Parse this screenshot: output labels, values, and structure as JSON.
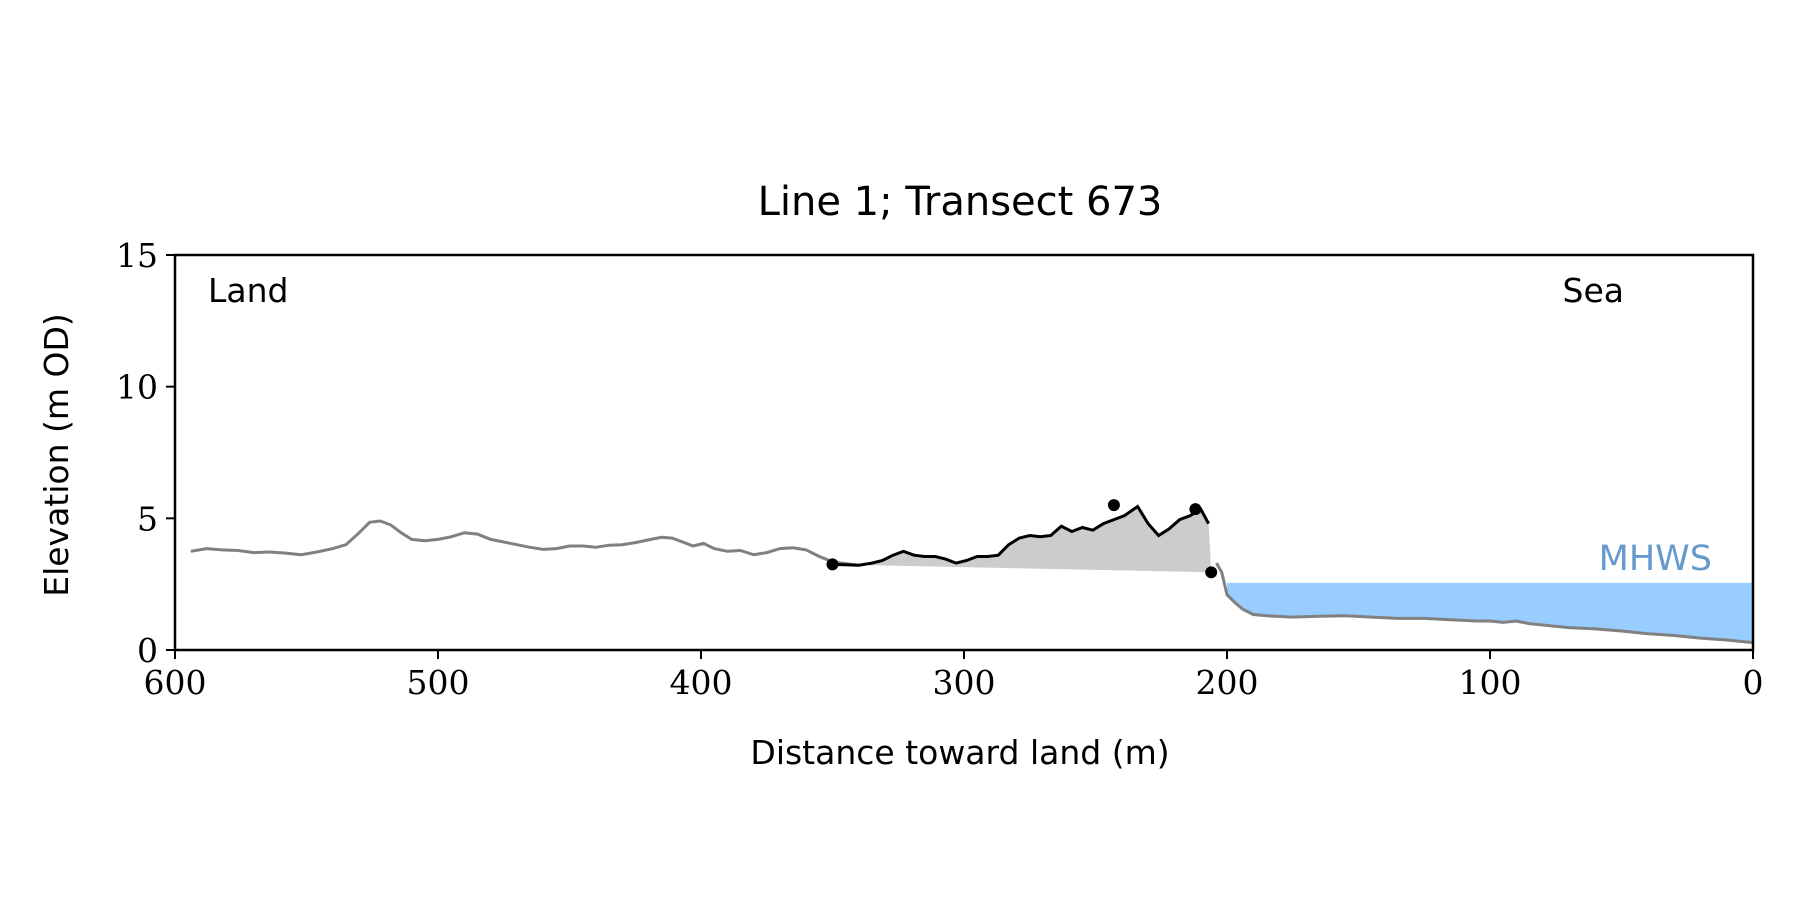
{
  "chart_data": {
    "type": "line",
    "title": "Line 1; Transect 673",
    "xlabel": "Distance toward land (m)",
    "ylabel": "Elevation (m OD)",
    "xlim": [
      600,
      0
    ],
    "ylim": [
      0,
      15
    ],
    "x_ticks": [
      600,
      500,
      400,
      300,
      200,
      100,
      0
    ],
    "y_ticks": [
      0,
      5,
      10,
      15
    ],
    "grid": false,
    "annotations": {
      "land_label": "Land",
      "sea_label": "Sea",
      "mhws_label": "MHWS"
    },
    "mhws": {
      "level": 2.55,
      "x_start": 200,
      "x_end": 0
    },
    "colors": {
      "profile": "#808080",
      "feature": "#000000",
      "feature_fill": "#cccccc",
      "water": "#99ccff",
      "mhws_text": "#6699cc"
    },
    "series": [
      {
        "values_xy": [
          [
            594,
            3.75
          ],
          [
            588,
            3.85
          ],
          [
            582,
            3.8
          ],
          [
            576,
            3.78
          ],
          [
            570,
            3.7
          ],
          [
            564,
            3.72
          ],
          [
            558,
            3.68
          ],
          [
            552,
            3.62
          ],
          [
            546,
            3.72
          ],
          [
            540,
            3.85
          ],
          [
            535,
            4.0
          ],
          [
            530,
            4.45
          ],
          [
            526,
            4.85
          ],
          [
            522,
            4.9
          ],
          [
            518,
            4.75
          ],
          [
            514,
            4.45
          ],
          [
            510,
            4.2
          ],
          [
            505,
            4.15
          ],
          [
            500,
            4.2
          ],
          [
            495,
            4.3
          ],
          [
            490,
            4.45
          ],
          [
            485,
            4.4
          ],
          [
            480,
            4.2
          ],
          [
            475,
            4.1
          ],
          [
            470,
            4.0
          ],
          [
            465,
            3.9
          ],
          [
            460,
            3.82
          ],
          [
            455,
            3.85
          ],
          [
            450,
            3.95
          ],
          [
            445,
            3.95
          ],
          [
            440,
            3.9
          ],
          [
            435,
            3.98
          ],
          [
            430,
            4.0
          ],
          [
            425,
            4.08
          ],
          [
            420,
            4.18
          ],
          [
            415,
            4.28
          ],
          [
            411,
            4.25
          ],
          [
            407,
            4.1
          ],
          [
            403,
            3.95
          ],
          [
            399,
            4.05
          ],
          [
            395,
            3.85
          ],
          [
            390,
            3.75
          ],
          [
            385,
            3.78
          ],
          [
            380,
            3.62
          ],
          [
            375,
            3.7
          ],
          [
            370,
            3.85
          ],
          [
            365,
            3.88
          ],
          [
            360,
            3.8
          ],
          [
            355,
            3.55
          ],
          [
            350,
            3.35
          ],
          [
            345,
            3.28
          ],
          [
            340,
            3.22
          ]
        ]
      },
      {
        "values_xy": [
          [
            340,
            3.22
          ],
          [
            335,
            3.3
          ],
          [
            331,
            3.4
          ],
          [
            327,
            3.6
          ],
          [
            323,
            3.75
          ],
          [
            319,
            3.6
          ],
          [
            315,
            3.55
          ],
          [
            311,
            3.55
          ],
          [
            307,
            3.45
          ],
          [
            303,
            3.3
          ],
          [
            299,
            3.4
          ],
          [
            295,
            3.55
          ],
          [
            291,
            3.55
          ],
          [
            287,
            3.6
          ],
          [
            283,
            4.0
          ],
          [
            279,
            4.25
          ],
          [
            275,
            4.35
          ],
          [
            271,
            4.3
          ],
          [
            267,
            4.35
          ],
          [
            263,
            4.7
          ],
          [
            259,
            4.5
          ],
          [
            255,
            4.65
          ],
          [
            251,
            4.55
          ],
          [
            247,
            4.8
          ],
          [
            243,
            4.95
          ],
          [
            239,
            5.1
          ],
          [
            234,
            5.45
          ],
          [
            230,
            4.8
          ],
          [
            226,
            4.35
          ],
          [
            222,
            4.6
          ],
          [
            218,
            4.95
          ],
          [
            214,
            5.1
          ],
          [
            210,
            5.35
          ],
          [
            207,
            4.8
          ],
          [
            204,
            3.3
          ],
          [
            202,
            2.95
          ],
          [
            200,
            2.1
          ],
          [
            197,
            1.8
          ],
          [
            194,
            1.55
          ],
          [
            190,
            1.35
          ],
          [
            185,
            1.3
          ],
          [
            175,
            1.25
          ],
          [
            165,
            1.28
          ],
          [
            155,
            1.3
          ],
          [
            145,
            1.25
          ],
          [
            135,
            1.2
          ],
          [
            125,
            1.2
          ],
          [
            115,
            1.15
          ],
          [
            105,
            1.1
          ],
          [
            100,
            1.1
          ],
          [
            95,
            1.05
          ],
          [
            90,
            1.1
          ],
          [
            85,
            1.0
          ],
          [
            80,
            0.95
          ],
          [
            70,
            0.85
          ],
          [
            60,
            0.8
          ],
          [
            50,
            0.72
          ],
          [
            40,
            0.62
          ],
          [
            30,
            0.55
          ],
          [
            20,
            0.45
          ],
          [
            10,
            0.38
          ],
          [
            0,
            0.28
          ]
        ]
      }
    ],
    "feature": {
      "points_xy": [
        [
          350,
          3.25
        ],
        [
          243,
          5.5
        ],
        [
          212,
          5.35
        ],
        [
          206,
          2.95
        ]
      ],
      "base_xy": [
        [
          350,
          3.25
        ],
        [
          206,
          2.95
        ]
      ]
    }
  }
}
